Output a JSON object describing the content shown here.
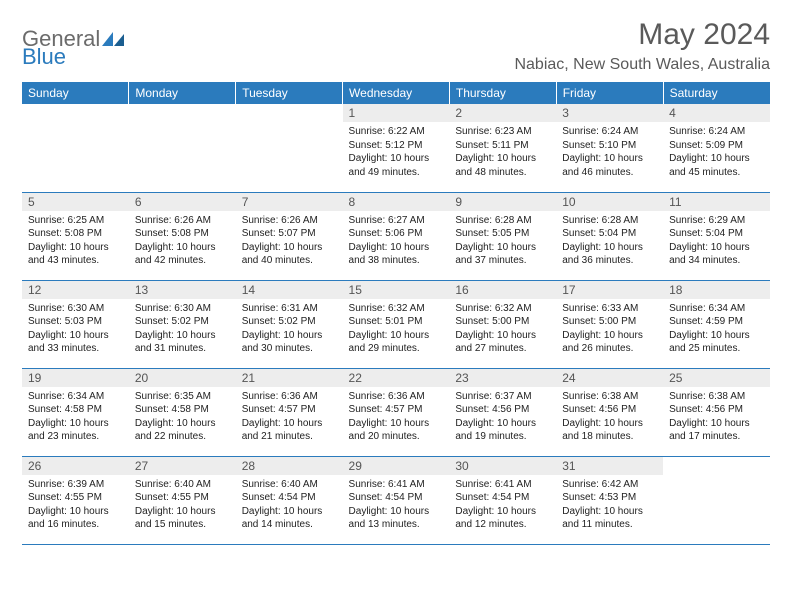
{
  "brand": {
    "part1": "General",
    "part2": "Blue"
  },
  "title": "May 2024",
  "location": "Nabiac, New South Wales, Australia",
  "colors": {
    "header_bg": "#2b7bbd",
    "header_text": "#ffffff",
    "daynum_bg": "#ededed",
    "border": "#2b7bbd",
    "title_color": "#5a5a5a"
  },
  "dayHeaders": [
    "Sunday",
    "Monday",
    "Tuesday",
    "Wednesday",
    "Thursday",
    "Friday",
    "Saturday"
  ],
  "weeks": [
    [
      {
        "empty": true
      },
      {
        "empty": true
      },
      {
        "empty": true
      },
      {
        "num": "1",
        "sunrise": "6:22 AM",
        "sunset": "5:12 PM",
        "daylight": "10 hours and 49 minutes."
      },
      {
        "num": "2",
        "sunrise": "6:23 AM",
        "sunset": "5:11 PM",
        "daylight": "10 hours and 48 minutes."
      },
      {
        "num": "3",
        "sunrise": "6:24 AM",
        "sunset": "5:10 PM",
        "daylight": "10 hours and 46 minutes."
      },
      {
        "num": "4",
        "sunrise": "6:24 AM",
        "sunset": "5:09 PM",
        "daylight": "10 hours and 45 minutes."
      }
    ],
    [
      {
        "num": "5",
        "sunrise": "6:25 AM",
        "sunset": "5:08 PM",
        "daylight": "10 hours and 43 minutes."
      },
      {
        "num": "6",
        "sunrise": "6:26 AM",
        "sunset": "5:08 PM",
        "daylight": "10 hours and 42 minutes."
      },
      {
        "num": "7",
        "sunrise": "6:26 AM",
        "sunset": "5:07 PM",
        "daylight": "10 hours and 40 minutes."
      },
      {
        "num": "8",
        "sunrise": "6:27 AM",
        "sunset": "5:06 PM",
        "daylight": "10 hours and 38 minutes."
      },
      {
        "num": "9",
        "sunrise": "6:28 AM",
        "sunset": "5:05 PM",
        "daylight": "10 hours and 37 minutes."
      },
      {
        "num": "10",
        "sunrise": "6:28 AM",
        "sunset": "5:04 PM",
        "daylight": "10 hours and 36 minutes."
      },
      {
        "num": "11",
        "sunrise": "6:29 AM",
        "sunset": "5:04 PM",
        "daylight": "10 hours and 34 minutes."
      }
    ],
    [
      {
        "num": "12",
        "sunrise": "6:30 AM",
        "sunset": "5:03 PM",
        "daylight": "10 hours and 33 minutes."
      },
      {
        "num": "13",
        "sunrise": "6:30 AM",
        "sunset": "5:02 PM",
        "daylight": "10 hours and 31 minutes."
      },
      {
        "num": "14",
        "sunrise": "6:31 AM",
        "sunset": "5:02 PM",
        "daylight": "10 hours and 30 minutes."
      },
      {
        "num": "15",
        "sunrise": "6:32 AM",
        "sunset": "5:01 PM",
        "daylight": "10 hours and 29 minutes."
      },
      {
        "num": "16",
        "sunrise": "6:32 AM",
        "sunset": "5:00 PM",
        "daylight": "10 hours and 27 minutes."
      },
      {
        "num": "17",
        "sunrise": "6:33 AM",
        "sunset": "5:00 PM",
        "daylight": "10 hours and 26 minutes."
      },
      {
        "num": "18",
        "sunrise": "6:34 AM",
        "sunset": "4:59 PM",
        "daylight": "10 hours and 25 minutes."
      }
    ],
    [
      {
        "num": "19",
        "sunrise": "6:34 AM",
        "sunset": "4:58 PM",
        "daylight": "10 hours and 23 minutes."
      },
      {
        "num": "20",
        "sunrise": "6:35 AM",
        "sunset": "4:58 PM",
        "daylight": "10 hours and 22 minutes."
      },
      {
        "num": "21",
        "sunrise": "6:36 AM",
        "sunset": "4:57 PM",
        "daylight": "10 hours and 21 minutes."
      },
      {
        "num": "22",
        "sunrise": "6:36 AM",
        "sunset": "4:57 PM",
        "daylight": "10 hours and 20 minutes."
      },
      {
        "num": "23",
        "sunrise": "6:37 AM",
        "sunset": "4:56 PM",
        "daylight": "10 hours and 19 minutes."
      },
      {
        "num": "24",
        "sunrise": "6:38 AM",
        "sunset": "4:56 PM",
        "daylight": "10 hours and 18 minutes."
      },
      {
        "num": "25",
        "sunrise": "6:38 AM",
        "sunset": "4:56 PM",
        "daylight": "10 hours and 17 minutes."
      }
    ],
    [
      {
        "num": "26",
        "sunrise": "6:39 AM",
        "sunset": "4:55 PM",
        "daylight": "10 hours and 16 minutes."
      },
      {
        "num": "27",
        "sunrise": "6:40 AM",
        "sunset": "4:55 PM",
        "daylight": "10 hours and 15 minutes."
      },
      {
        "num": "28",
        "sunrise": "6:40 AM",
        "sunset": "4:54 PM",
        "daylight": "10 hours and 14 minutes."
      },
      {
        "num": "29",
        "sunrise": "6:41 AM",
        "sunset": "4:54 PM",
        "daylight": "10 hours and 13 minutes."
      },
      {
        "num": "30",
        "sunrise": "6:41 AM",
        "sunset": "4:54 PM",
        "daylight": "10 hours and 12 minutes."
      },
      {
        "num": "31",
        "sunrise": "6:42 AM",
        "sunset": "4:53 PM",
        "daylight": "10 hours and 11 minutes."
      },
      {
        "empty": true
      }
    ]
  ]
}
